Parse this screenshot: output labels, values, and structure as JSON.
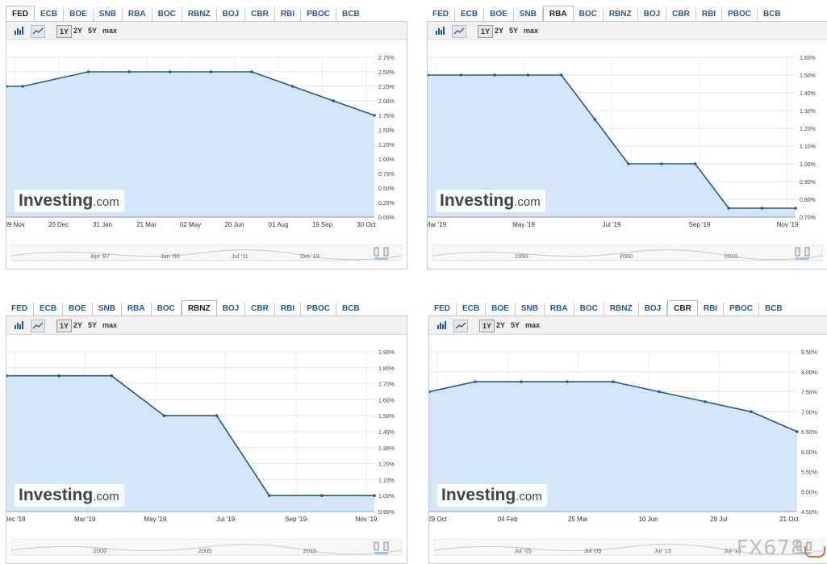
{
  "tabs": [
    "FED",
    "ECB",
    "BOE",
    "SNB",
    "RBA",
    "BOC",
    "RBNZ",
    "BOJ",
    "CBR",
    "RBI",
    "PBOC",
    "BCB"
  ],
  "toolbar": {
    "ranges": [
      "1Y",
      "2Y",
      "5Y",
      "max"
    ],
    "active": "1Y"
  },
  "logo": {
    "brand": "Investing",
    "suffix": ".com"
  },
  "watermark": "FX678",
  "colors": {
    "line": "#1f5a9f",
    "fill": "#d5e6f9",
    "tab_text": "#1f5a9f"
  },
  "panels": [
    {
      "active_tab": "FED",
      "x_ticks": [
        "09 Nov",
        "20 Dec",
        "31 Jan",
        "21 Mar",
        "02 May",
        "20 Jun",
        "01 Aug",
        "19 Sep",
        "30 Oct"
      ],
      "y_ticks": [
        "2.75%",
        "2.50%",
        "2.25%",
        "2.00%",
        "1.75%",
        "1.50%",
        "1.25%",
        "1.00%",
        "0.75%",
        "0.50%",
        "0.25%",
        "0.00%"
      ],
      "mini_labels": [
        "Apr '87",
        "Jan '00",
        "Jul '11",
        "Oct '19"
      ],
      "chart_data": {
        "type": "line",
        "ylim": [
          0,
          2.75
        ],
        "points": [
          [
            0,
            2.25
          ],
          [
            0.4,
            2.25
          ],
          [
            2,
            2.5
          ],
          [
            3,
            2.5
          ],
          [
            4,
            2.5
          ],
          [
            5,
            2.5
          ],
          [
            6,
            2.5
          ],
          [
            7,
            2.25
          ],
          [
            8,
            2.0
          ],
          [
            9,
            1.75
          ]
        ]
      }
    },
    {
      "active_tab": "RBA",
      "x_ticks": [
        "Mar '19",
        "May '19",
        "Jul '19",
        "Sep '19",
        "Nov '19"
      ],
      "y_ticks": [
        "1.60%",
        "1.50%",
        "1.40%",
        "1.30%",
        "1.20%",
        "1.10%",
        "1.00%",
        "0.90%",
        "0.80%",
        "0.70%"
      ],
      "mini_labels": [
        "1990",
        "2000",
        "2010"
      ],
      "chart_data": {
        "type": "line",
        "ylim": [
          0.7,
          1.6
        ],
        "points": [
          [
            0,
            1.5
          ],
          [
            1,
            1.5
          ],
          [
            2,
            1.5
          ],
          [
            3,
            1.5
          ],
          [
            4,
            1.5
          ],
          [
            5,
            1.25
          ],
          [
            6,
            1.0
          ],
          [
            7,
            1.0
          ],
          [
            8,
            1.0
          ],
          [
            9,
            0.75
          ],
          [
            10,
            0.75
          ],
          [
            11,
            0.75
          ]
        ]
      }
    },
    {
      "active_tab": "RBNZ",
      "x_ticks": [
        "Dec '18",
        "Mar '19",
        "May '19",
        "Jul '19",
        "Sep '19",
        "Nov '19"
      ],
      "y_ticks": [
        "1.90%",
        "1.80%",
        "1.70%",
        "1.60%",
        "1.50%",
        "1.40%",
        "1.30%",
        "1.20%",
        "1.10%",
        "1.00%",
        "0.90%"
      ],
      "mini_labels": [
        "2000",
        "2005",
        "2015"
      ],
      "chart_data": {
        "type": "line",
        "ylim": [
          0.9,
          1.9
        ],
        "points": [
          [
            0,
            1.75
          ],
          [
            1,
            1.75
          ],
          [
            2,
            1.75
          ],
          [
            3,
            1.5
          ],
          [
            4,
            1.5
          ],
          [
            5,
            1.0
          ],
          [
            6,
            1.0
          ],
          [
            7,
            1.0
          ]
        ]
      }
    },
    {
      "active_tab": "CBR",
      "x_ticks": [
        "29 Oct",
        "04 Feb",
        "25 Mar",
        "10 Jun",
        "29 Jul",
        "21 Oct"
      ],
      "y_ticks": [
        "8.50%",
        "8.00%",
        "7.50%",
        "7.00%",
        "6.50%",
        "6.00%",
        "5.50%",
        "5.00%",
        "4.50%"
      ],
      "mini_labels": [
        "Jul '05",
        "Jul '09",
        "Jul '13",
        "Jul '19"
      ],
      "chart_data": {
        "type": "line",
        "ylim": [
          4.5,
          8.5
        ],
        "points": [
          [
            0,
            7.5
          ],
          [
            1,
            7.75
          ],
          [
            2,
            7.75
          ],
          [
            3,
            7.75
          ],
          [
            4,
            7.75
          ],
          [
            5,
            7.5
          ],
          [
            6,
            7.25
          ],
          [
            7,
            7.0
          ],
          [
            8,
            6.5
          ]
        ]
      }
    }
  ]
}
